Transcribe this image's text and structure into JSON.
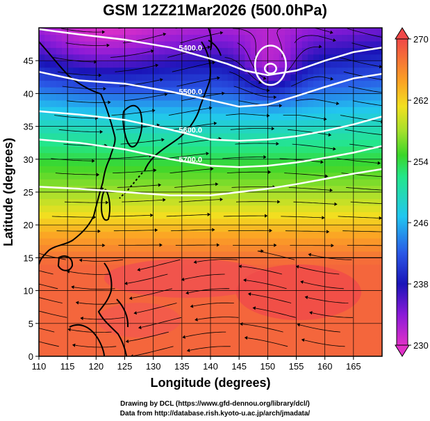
{
  "title": "GSM 12Z21Mar2026 (500.0hPa)",
  "xlabel": "Longitude (degrees)",
  "ylabel": "Latitude  (degrees)",
  "credits": {
    "line1": "Drawing by DCL (https://www.gfd-dennou.org/library/dcl/)",
    "line2": "Data from http://database.rish.kyoto-u.ac.jp/arch/jmadata/"
  },
  "chart_data": {
    "type": "heatmap",
    "title": "GSM 12Z21Mar2026 (500.0hPa)",
    "xlabel": "Longitude (degrees)",
    "ylabel": "Latitude  (degrees)",
    "xlim": [
      110,
      170
    ],
    "ylim": [
      0,
      50
    ],
    "x_ticks": [
      110,
      115,
      120,
      125,
      130,
      135,
      140,
      145,
      150,
      155,
      160,
      165
    ],
    "y_ticks": [
      0,
      5,
      10,
      15,
      20,
      25,
      30,
      35,
      40,
      45
    ],
    "grid": true,
    "colorbar": {
      "min": 230,
      "max": 270,
      "ticks": [
        230,
        238,
        246,
        254,
        262,
        270
      ],
      "placement": "right"
    },
    "contours": [
      {
        "label": "5400.0",
        "x": [
          110,
          117,
          125,
          133,
          140,
          143,
          146,
          150,
          155,
          160,
          165,
          170
        ],
        "y": [
          49.8,
          49.0,
          48.2,
          47.0,
          45.3,
          44.5,
          43.5,
          42.8,
          43.5,
          45.0,
          46.3,
          47.0
        ]
      },
      {
        "label": "5500.0",
        "x": [
          110,
          117,
          125,
          133,
          140,
          145,
          150,
          155,
          160,
          165,
          170
        ],
        "y": [
          43.3,
          42.0,
          41.5,
          40.3,
          39.0,
          38.0,
          38.3,
          39.6,
          41.0,
          42.3,
          43.0
        ]
      },
      {
        "label": "5600.0",
        "x": [
          110,
          117,
          125,
          133,
          140,
          145,
          150,
          155,
          160,
          165,
          170
        ],
        "y": [
          37.3,
          36.8,
          36.0,
          34.5,
          33.0,
          32.8,
          33.0,
          33.5,
          34.3,
          35.3,
          36.5
        ]
      },
      {
        "label": "5700.0",
        "x": [
          110,
          117,
          125,
          133,
          140,
          145,
          150,
          155,
          160,
          165,
          170
        ],
        "y": [
          33.0,
          32.5,
          31.5,
          30.0,
          29.0,
          28.8,
          29.0,
          29.5,
          30.2,
          31.0,
          32.0
        ]
      },
      {
        "label": "",
        "x": [
          110,
          117,
          125,
          133,
          140,
          145,
          150,
          155,
          160,
          165,
          170
        ],
        "y": [
          25.8,
          25.5,
          25.0,
          24.5,
          24.5,
          25.0,
          25.5,
          26.2,
          27.0,
          27.8,
          28.5
        ]
      }
    ],
    "low_rings": [
      {
        "x": 150.5,
        "y": 44.3,
        "rx": 2.7,
        "ry": 3.0
      },
      {
        "x": 150.5,
        "y": 43.8,
        "rx": 1.0,
        "ry": 0.75
      }
    ],
    "overlay": "streamlines"
  }
}
